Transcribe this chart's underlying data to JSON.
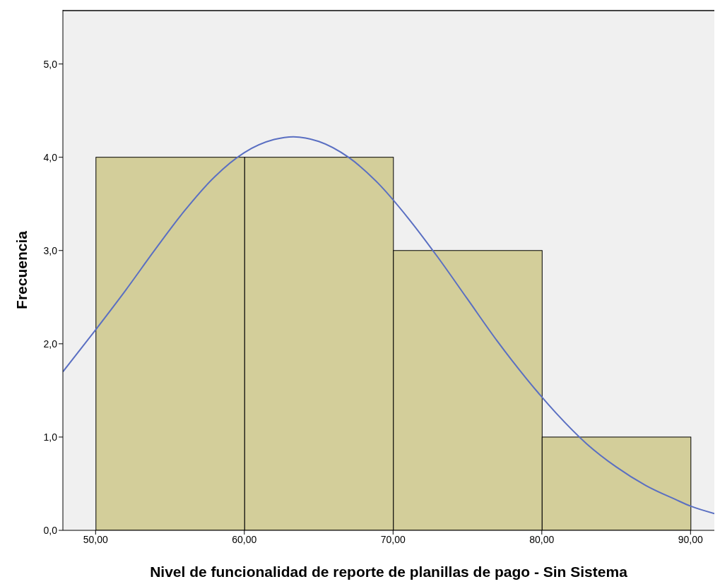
{
  "chart_data": {
    "type": "histogram",
    "xlabel": "Nivel de funcionalidad de reporte de planillas de pago - Sin Sistema",
    "ylabel": "Frecuencia",
    "bins": [
      50,
      60,
      70,
      80,
      90
    ],
    "values": [
      4,
      4,
      3,
      1
    ],
    "color": "#d3ce9a",
    "series": [
      {
        "type": "line",
        "color": "#5a6fc2",
        "x": [
          47.8,
          50,
          52,
          54,
          56,
          58,
          60,
          62,
          63.3,
          65,
          67,
          69,
          71,
          73,
          75,
          77,
          79,
          81,
          83,
          85,
          87,
          89,
          90,
          91.6
        ],
        "values": [
          1.7,
          2.15,
          2.57,
          3.01,
          3.43,
          3.79,
          4.05,
          4.19,
          4.22,
          4.17,
          4.0,
          3.72,
          3.35,
          2.93,
          2.48,
          2.03,
          1.62,
          1.25,
          0.93,
          0.68,
          0.48,
          0.33,
          0.26,
          0.18
        ]
      }
    ],
    "xlim": [
      47.8,
      91.6
    ],
    "xticks": [
      {
        "value": 50,
        "label": "50,00"
      },
      {
        "value": 60,
        "label": "60,00"
      },
      {
        "value": 70,
        "label": "70,00"
      },
      {
        "value": 80,
        "label": "80,00"
      },
      {
        "value": 90,
        "label": "90,00"
      }
    ],
    "ylim": [
      0,
      5.58
    ],
    "yticks": [
      {
        "value": 0,
        "label": "0,0"
      },
      {
        "value": 1,
        "label": "1,0"
      },
      {
        "value": 2,
        "label": "2,0"
      },
      {
        "value": 3,
        "label": "3,0"
      },
      {
        "value": 4,
        "label": "4,0"
      },
      {
        "value": 5,
        "label": "5,0"
      }
    ],
    "grid": false,
    "legend": false
  }
}
